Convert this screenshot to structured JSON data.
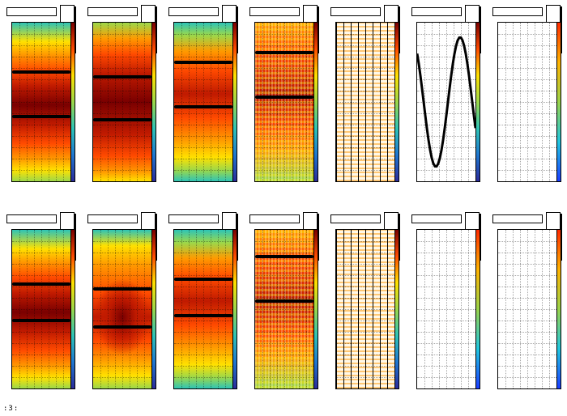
{
  "canvas": {
    "background": "#ffffff"
  },
  "palette": {
    "rainbow": [
      "#7a0000",
      "#c01a00",
      "#ff4a00",
      "#ff9a00",
      "#ffe100",
      "#9cd84a",
      "#2ec4b6",
      "#1f77d0",
      "#2b2b9a"
    ],
    "empty_scale": [
      "#ff2a00",
      "#ffb300",
      "#9ad34a",
      "#21c7e0",
      "#1a3cff"
    ]
  },
  "footer": {
    "label": ":3:"
  },
  "panels": [
    {
      "style": "heat-dark-center",
      "bands": [
        0.3,
        0.58
      ]
    },
    {
      "style": "heat-deep",
      "bands": [
        0.33,
        0.6
      ]
    },
    {
      "style": "heat-mild",
      "bands": [
        0.24,
        0.52
      ]
    },
    {
      "style": "noisy",
      "bands": [
        0.18,
        0.46
      ]
    },
    {
      "style": "sparse-lines",
      "bands": []
    },
    {
      "style": "sine",
      "bands": []
    },
    {
      "style": "empty",
      "bands": []
    },
    {
      "style": "heat-dark-center",
      "bands": [
        0.33,
        0.56
      ]
    },
    {
      "style": "heat-blob",
      "bands": [
        0.36,
        0.6
      ]
    },
    {
      "style": "heat-mild",
      "bands": [
        0.3,
        0.53
      ]
    },
    {
      "style": "noisy",
      "bands": [
        0.16,
        0.44
      ]
    },
    {
      "style": "sparse-lines",
      "bands": []
    },
    {
      "style": "empty",
      "bands": []
    },
    {
      "style": "empty",
      "bands": []
    }
  ]
}
